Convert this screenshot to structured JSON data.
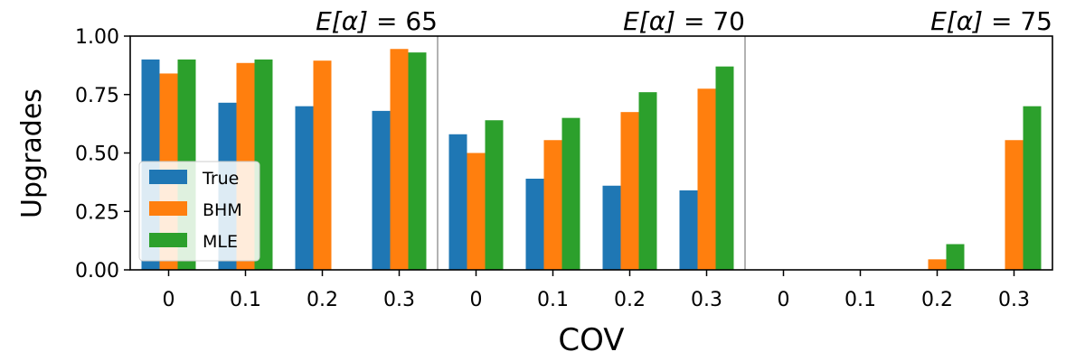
{
  "chart_data": {
    "type": "bar",
    "xlabel": "COV",
    "ylabel": "Upgrades",
    "ylim": [
      0,
      1.0
    ],
    "yticks": [
      "0.00",
      "0.25",
      "0.50",
      "0.75",
      "1.00"
    ],
    "categories": [
      "0",
      "0.1",
      "0.2",
      "0.3",
      "0",
      "0.1",
      "0.2",
      "0.3",
      "0",
      "0.1",
      "0.2",
      "0.3"
    ],
    "groups": [
      {
        "label_prefix": "E",
        "label_symbol": "[α]",
        "label_suffix": " = 65",
        "range": [
          0,
          3
        ]
      },
      {
        "label_prefix": "E",
        "label_symbol": "[α]",
        "label_suffix": " = 70",
        "range": [
          4,
          7
        ]
      },
      {
        "label_prefix": "E",
        "label_symbol": "[α]",
        "label_suffix": " = 75",
        "range": [
          8,
          11
        ]
      }
    ],
    "series": [
      {
        "name": "True",
        "color": "#1f77b4",
        "values": [
          0.9,
          0.715,
          0.7,
          0.68,
          0.58,
          0.39,
          0.36,
          0.34,
          0.0,
          0.0,
          0.0,
          0.0
        ]
      },
      {
        "name": "BHM",
        "color": "#ff7f0e",
        "values": [
          0.84,
          0.885,
          0.895,
          0.945,
          0.5,
          0.555,
          0.675,
          0.775,
          0.0,
          0.0,
          0.045,
          0.555
        ]
      },
      {
        "name": "MLE",
        "color": "#2ca02c",
        "values": [
          0.9,
          0.9,
          0.0,
          0.93,
          0.64,
          0.65,
          0.76,
          0.87,
          0.0,
          0.0,
          0.11,
          0.7
        ]
      }
    ],
    "legend": {
      "position": "lower-left",
      "entries": [
        "True",
        "BHM",
        "MLE"
      ]
    }
  }
}
